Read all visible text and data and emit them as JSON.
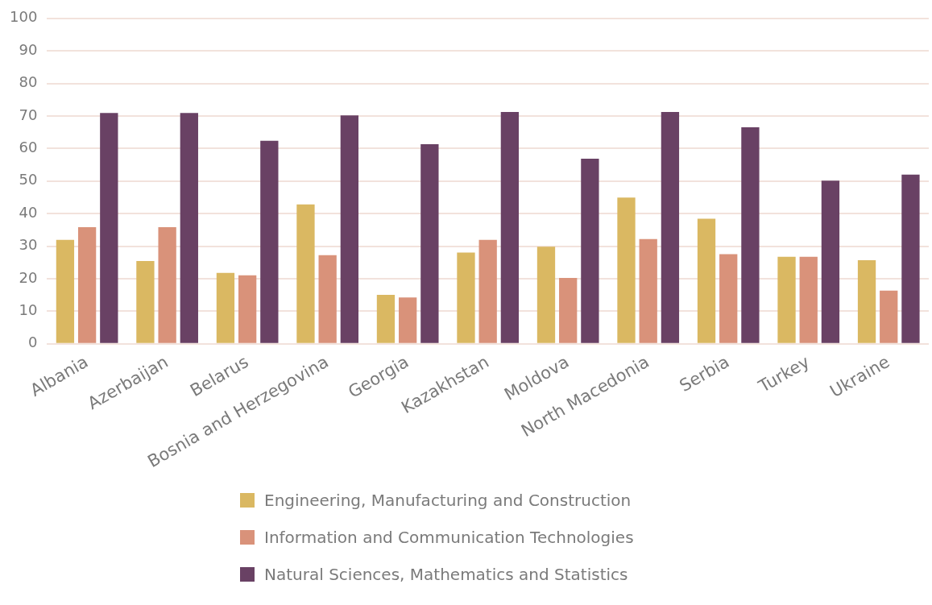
{
  "chart_data": {
    "type": "bar",
    "categories": [
      "Albania",
      "Azerbaijan",
      "Belarus",
      "Bosnia and Herzegovina",
      "Georgia",
      "Kazakhstan",
      "Moldova",
      "North Macedonia",
      "Serbia",
      "Turkey",
      "Ukraine"
    ],
    "series": [
      {
        "name": "Engineering, Manufacturing and Construction",
        "color": "#dab862",
        "values": [
          31.9,
          25.4,
          21.8,
          42.8,
          15.0,
          28.0,
          29.8,
          44.9,
          38.4,
          26.7,
          25.7
        ]
      },
      {
        "name": "Information and Communication Technologies",
        "color": "#d9927a",
        "values": [
          35.8,
          35.8,
          21.0,
          27.2,
          14.2,
          31.9,
          20.2,
          32.2,
          27.5,
          26.7,
          16.3
        ]
      },
      {
        "name": "Natural Sciences, Mathematics and Statistics",
        "color": "#694164",
        "values": [
          70.9,
          70.9,
          62.4,
          70.2,
          61.3,
          71.2,
          56.9,
          71.2,
          66.5,
          50.1,
          52.0
        ]
      }
    ],
    "ylim": [
      0,
      100
    ],
    "yticks": [
      0,
      10,
      20,
      30,
      40,
      50,
      60,
      70,
      80,
      90,
      100
    ],
    "grid": "y",
    "legend": "bottom"
  }
}
